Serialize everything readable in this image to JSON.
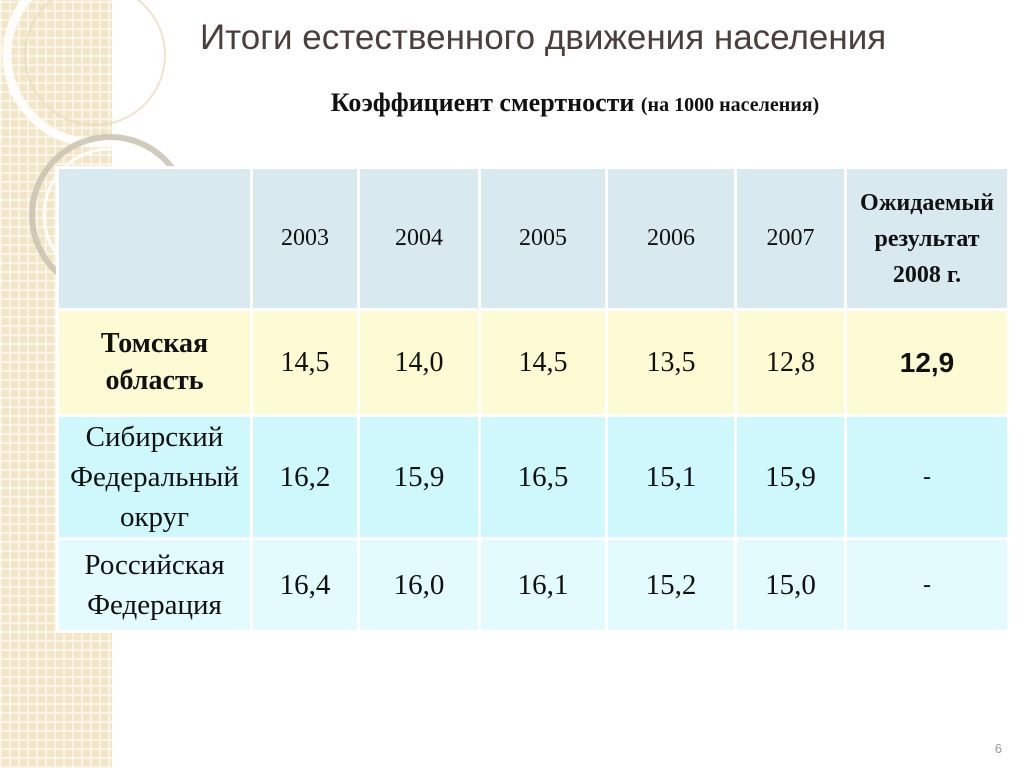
{
  "slide": {
    "title": "Итоги естественного движения населения",
    "subtitle_main": "Коэффициент смертности",
    "subtitle_note": "(на 1000 населения)",
    "page_number": "6"
  },
  "table": {
    "header": {
      "corner": "",
      "years": [
        "2003",
        "2004",
        "2005",
        "2006",
        "2007"
      ],
      "expected_line1": "Ожидаемый",
      "expected_line2": "результат",
      "expected_year": "2008",
      "expected_suffix": "г."
    },
    "rows": [
      {
        "label_line1": "Томская",
        "label_line2": "область",
        "values": [
          "14,5",
          "14,0",
          "14,5",
          "13,5",
          "12,8"
        ],
        "expected": "12,9"
      },
      {
        "label_line1": "Сибирский",
        "label_line2": "Федеральный",
        "label_line3": "округ",
        "values": [
          "16,2",
          "15,9",
          "16,5",
          "15,1",
          "15,9"
        ],
        "expected": "-"
      },
      {
        "label_line1": "Российская",
        "label_line2": "Федерация",
        "values": [
          "16,4",
          "16,0",
          "16,1",
          "15,2",
          "15,0"
        ],
        "expected": "-"
      }
    ]
  },
  "colors": {
    "header_fill": "#d8e9f0",
    "tomsk_fill": "#fdfbd3",
    "sfo_fill": "#cef8fb",
    "rf_fill": "#e4fbfd",
    "expected_header_text": "#c0001f",
    "expected_value_text": "#1b1ba8"
  }
}
